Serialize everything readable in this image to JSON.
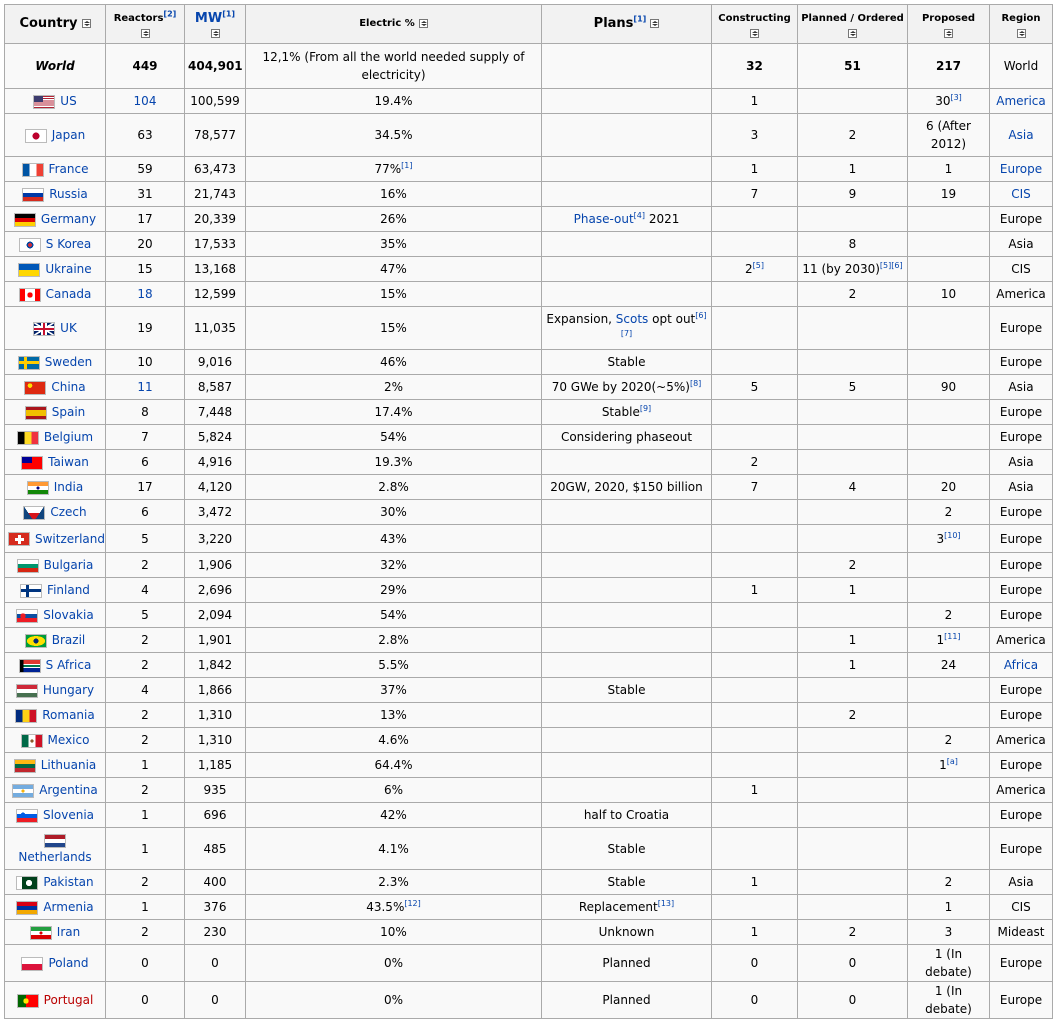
{
  "headers": {
    "country": "Country",
    "reactors": "Reactors",
    "reactors_ref": "[2]",
    "mw": "MW",
    "mw_ref": "[1]",
    "electric": "Electric %",
    "plans": "Plans",
    "plans_ref": "[1]",
    "constructing": "Constructing",
    "planned": "Planned / Ordered",
    "proposed": "Proposed",
    "region": "Region"
  },
  "world": {
    "country": "World",
    "reactors": "449",
    "mw": "404,901",
    "electric": "12,1% (From all the world needed supply of electricity)",
    "plans": "",
    "constructing": "32",
    "planned": "51",
    "proposed": "217",
    "region": "World"
  },
  "rows": [
    {
      "country": "US",
      "flag": "us",
      "reactors": "104",
      "reactors_link": true,
      "mw": "100,599",
      "electric": "19.4%",
      "plans": "",
      "constructing": "1",
      "planned": "",
      "proposed": "30",
      "proposed_ref": "[3]",
      "region": "America",
      "region_link": true
    },
    {
      "country": "Japan",
      "flag": "jp",
      "reactors": "63",
      "mw": "78,577",
      "electric": "34.5%",
      "plans": "",
      "constructing": "3",
      "planned": "2",
      "proposed": "6 (After 2012)",
      "region": "Asia",
      "region_link": true
    },
    {
      "country": "France",
      "flag": "fr",
      "reactors": "59",
      "mw": "63,473",
      "electric": "77%",
      "electric_ref": "[1]",
      "plans": "",
      "constructing": "1",
      "planned": "1",
      "proposed": "1",
      "region": "Europe",
      "region_link": true
    },
    {
      "country": "Russia",
      "flag": "ru",
      "reactors": "31",
      "mw": "21,743",
      "electric": "16%",
      "plans": "",
      "constructing": "7",
      "planned": "9",
      "proposed": "19",
      "region": "CIS",
      "region_link": true
    },
    {
      "country": "Germany",
      "flag": "de",
      "reactors": "17",
      "mw": "20,339",
      "electric": "26%",
      "plans_link": "Phase-out",
      "plans_ref": "[4]",
      "plans": " 2021",
      "constructing": "",
      "planned": "",
      "proposed": "",
      "region": "Europe"
    },
    {
      "country": "S Korea",
      "flag": "kr",
      "reactors": "20",
      "mw": "17,533",
      "electric": "35%",
      "plans": "",
      "constructing": "",
      "planned": "8",
      "proposed": "",
      "region": "Asia"
    },
    {
      "country": "Ukraine",
      "flag": "ua",
      "reactors": "15",
      "mw": "13,168",
      "electric": "47%",
      "plans": "",
      "constructing": "2",
      "constructing_ref": "[5]",
      "planned": "11 (by 2030)",
      "planned_ref": "[5][6]",
      "proposed": "",
      "region": "CIS"
    },
    {
      "country": "Canada",
      "flag": "ca",
      "reactors": "18",
      "reactors_link": true,
      "mw": "12,599",
      "electric": "15%",
      "plans": "",
      "constructing": "",
      "planned": "2",
      "proposed": "10",
      "region": "America"
    },
    {
      "country": "UK",
      "flag": "uk",
      "reactors": "19",
      "mw": "11,035",
      "electric": "15%",
      "plans": "Expansion, ",
      "plans_link2": "Scots",
      "plans_after": " opt out",
      "plans_ref": "[6][7]",
      "constructing": "",
      "planned": "",
      "proposed": "",
      "region": "Europe"
    },
    {
      "country": "Sweden",
      "flag": "se",
      "reactors": "10",
      "mw": "9,016",
      "electric": "46%",
      "plans": "Stable",
      "constructing": "",
      "planned": "",
      "proposed": "",
      "region": "Europe"
    },
    {
      "country": "China",
      "flag": "cn",
      "reactors": "11",
      "reactors_link": true,
      "mw": "8,587",
      "electric": "2%",
      "plans": "70 GWe by 2020(~5%)",
      "plans_ref": "[8]",
      "constructing": "5",
      "planned": "5",
      "proposed": "90",
      "region": "Asia"
    },
    {
      "country": "Spain",
      "flag": "es",
      "reactors": "8",
      "mw": "7,448",
      "electric": "17.4%",
      "plans": "Stable",
      "plans_ref": "[9]",
      "constructing": "",
      "planned": "",
      "proposed": "",
      "region": "Europe"
    },
    {
      "country": "Belgium",
      "flag": "be",
      "reactors": "7",
      "mw": "5,824",
      "electric": "54%",
      "plans": "Considering phaseout",
      "constructing": "",
      "planned": "",
      "proposed": "",
      "region": "Europe"
    },
    {
      "country": "Taiwan",
      "flag": "tw",
      "reactors": "6",
      "mw": "4,916",
      "electric": "19.3%",
      "plans": "",
      "constructing": "2",
      "planned": "",
      "proposed": "",
      "region": "Asia"
    },
    {
      "country": "India",
      "flag": "in",
      "reactors": "17",
      "mw": "4,120",
      "electric": "2.8%",
      "plans": "20GW, 2020, $150 billion",
      "constructing": "7",
      "planned": "4",
      "proposed": "20",
      "region": "Asia"
    },
    {
      "country": "Czech",
      "flag": "cz",
      "reactors": "6",
      "mw": "3,472",
      "electric": "30%",
      "plans": "",
      "constructing": "",
      "planned": "",
      "proposed": "2",
      "region": "Europe"
    },
    {
      "country": "Switzerland",
      "flag": "ch",
      "reactors": "5",
      "mw": "3,220",
      "electric": "43%",
      "plans": "",
      "constructing": "",
      "planned": "",
      "proposed": "3",
      "proposed_ref": "[10]",
      "region": "Europe"
    },
    {
      "country": "Bulgaria",
      "flag": "bg",
      "reactors": "2",
      "mw": "1,906",
      "electric": "32%",
      "plans": "",
      "constructing": "",
      "planned": "2",
      "proposed": "",
      "region": "Europe"
    },
    {
      "country": "Finland",
      "flag": "fi",
      "reactors": "4",
      "mw": "2,696",
      "electric": "29%",
      "plans": "",
      "constructing": "1",
      "planned": "1",
      "proposed": "",
      "region": "Europe"
    },
    {
      "country": "Slovakia",
      "flag": "sk",
      "reactors": "5",
      "mw": "2,094",
      "electric": "54%",
      "plans": "",
      "constructing": "",
      "planned": "",
      "proposed": "2",
      "region": "Europe"
    },
    {
      "country": "Brazil",
      "flag": "br",
      "reactors": "2",
      "mw": "1,901",
      "electric": "2.8%",
      "plans": "",
      "constructing": "",
      "planned": "1",
      "proposed": "1",
      "proposed_ref": "[11]",
      "region": "America"
    },
    {
      "country": "S Africa",
      "flag": "za",
      "reactors": "2",
      "mw": "1,842",
      "electric": "5.5%",
      "plans": "",
      "constructing": "",
      "planned": "1",
      "proposed": "24",
      "region": "Africa",
      "region_link": true
    },
    {
      "country": "Hungary",
      "flag": "hu",
      "reactors": "4",
      "mw": "1,866",
      "electric": "37%",
      "plans": "Stable",
      "constructing": "",
      "planned": "",
      "proposed": "",
      "region": "Europe"
    },
    {
      "country": "Romania",
      "flag": "ro",
      "reactors": "2",
      "mw": "1,310",
      "electric": "13%",
      "plans": "",
      "constructing": "",
      "planned": "2",
      "proposed": "",
      "region": "Europe"
    },
    {
      "country": "Mexico",
      "flag": "mx",
      "reactors": "2",
      "mw": "1,310",
      "electric": "4.6%",
      "plans": "",
      "constructing": "",
      "planned": "",
      "proposed": "2",
      "region": "America"
    },
    {
      "country": "Lithuania",
      "flag": "lt",
      "reactors": "1",
      "mw": "1,185",
      "electric": "64.4%",
      "plans": "",
      "constructing": "",
      "planned": "",
      "proposed": "1",
      "proposed_ref": "[a]",
      "region": "Europe"
    },
    {
      "country": "Argentina",
      "flag": "ar",
      "reactors": "2",
      "mw": "935",
      "electric": "6%",
      "plans": "",
      "constructing": "1",
      "planned": "",
      "proposed": "",
      "region": "America"
    },
    {
      "country": "Slovenia",
      "flag": "si",
      "reactors": "1",
      "mw": "696",
      "electric": "42%",
      "plans": "half to Croatia",
      "constructing": "",
      "planned": "",
      "proposed": "",
      "region": "Europe"
    },
    {
      "country": "Netherlands",
      "flag": "nl",
      "flag_block": true,
      "reactors": "1",
      "mw": "485",
      "electric": "4.1%",
      "plans": "Stable",
      "constructing": "",
      "planned": "",
      "proposed": "",
      "region": "Europe"
    },
    {
      "country": "Pakistan",
      "flag": "pk",
      "reactors": "2",
      "mw": "400",
      "electric": "2.3%",
      "plans": "Stable",
      "constructing": "1",
      "planned": "",
      "proposed": "2",
      "region": "Asia"
    },
    {
      "country": "Armenia",
      "flag": "am",
      "reactors": "1",
      "mw": "376",
      "electric": "43.5%",
      "electric_ref": "[12]",
      "plans": "Replacement",
      "plans_ref": "[13]",
      "constructing": "",
      "planned": "",
      "proposed": "1",
      "region": "CIS"
    },
    {
      "country": "Iran",
      "flag": "ir",
      "reactors": "2",
      "mw": "230",
      "electric": "10%",
      "plans": "Unknown",
      "constructing": "1",
      "planned": "2",
      "proposed": "3",
      "region": "Mideast"
    },
    {
      "country": "Poland",
      "flag": "pl",
      "reactors": "0",
      "mw": "0",
      "electric": "0%",
      "plans": "Planned",
      "constructing": "0",
      "planned": "0",
      "proposed": "1 (In debate)",
      "region": "Europe"
    },
    {
      "country": "Portugal",
      "flag": "pt",
      "country_red": true,
      "reactors": "0",
      "mw": "0",
      "electric": "0%",
      "plans": "Planned",
      "constructing": "0",
      "planned": "0",
      "proposed": "1 (In debate)",
      "region": "Europe"
    }
  ],
  "flags": {
    "us": "linear-gradient(#3c3b6e,#3c3b6e) 0 0/45% 54% no-repeat, repeating-linear-gradient(#b22234 0 1.08px,#ffffff 1.08px 2.16px)",
    "jp": "radial-gradient(circle, #bc002d 0 3.4px, #ffffff 3.6px)",
    "fr": "linear-gradient(90deg,#0055a4 0 33.3%,#ffffff 33.3% 66.6%,#ef4135 66.6%)",
    "ru": "linear-gradient(#ffffff 0 33.3%,#0039a6 33.3% 66.6%,#d52b1e 66.6%)",
    "de": "linear-gradient(#000000 0 33.3%,#dd0000 33.3% 66.6%,#ffce00 66.6%)",
    "kr": "radial-gradient(circle, #cd2e3a 0 2px, #0047a0 2px 3.3px, #ffffff 3.5px)",
    "ua": "linear-gradient(#0057b7 0 50%,#ffd700 50%)",
    "ca": "radial-gradient(circle, #ff0000 0 2.6px, transparent 2.8px), linear-gradient(90deg,#ff0000 0 26%,#ffffff 26% 74%,#ff0000 74%)",
    "uk": "linear-gradient(#c8102e,#c8102e) center/100% 2px no-repeat, linear-gradient(#c8102e,#c8102e) center/2px 100% no-repeat, linear-gradient(#ffffff,#ffffff) center/100% 5px no-repeat, linear-gradient(#ffffff,#ffffff) center/6px 100% no-repeat, linear-gradient(33deg, transparent 46%, #ffffff 46% 54%, transparent 54%), linear-gradient(-33deg, transparent 46%, #ffffff 46% 54%, transparent 54%), #012169",
    "se": "linear-gradient(#fecc00,#fecc00) 0 50%/100% 3px no-repeat, linear-gradient(#fecc00,#fecc00) 30% 0/3px 100% no-repeat, #006aa7",
    "cn": "radial-gradient(circle at 25% 30%, #ffde00 0 2.2px, transparent 2.4px), #de2910",
    "es": "linear-gradient(#aa151b 0 25%,#f1bf00 25% 75%,#aa151b 75%)",
    "be": "linear-gradient(90deg,#000000 0 33.3%,#fdda24 33.3% 66.6%,#ef3340 66.6%)",
    "tw": "linear-gradient(#000095,#000095) 0 0/50% 50% no-repeat, #fe0000",
    "in": "radial-gradient(circle, #000080 0 1.4px, transparent 1.6px), linear-gradient(#ff9933 0 33.3%,#ffffff 33.3% 66.6%,#138808 66.6%)",
    "cz": "linear-gradient(56deg,#11457e 0 30%,transparent 30%), linear-gradient(-56deg,#11457e 0 30%,transparent 30%), linear-gradient(#ffffff 0 50%,#d7141a 50%)",
    "ch": "linear-gradient(#ffffff,#ffffff) center/9px 3px no-repeat, linear-gradient(#ffffff,#ffffff) center/3px 9px no-repeat, #d52b1e",
    "bg": "linear-gradient(#ffffff 0 33.3%,#00966e 33.3% 66.6%,#d62612 66.6%)",
    "fi": "linear-gradient(#003580,#003580) 0 50%/100% 3px no-repeat, linear-gradient(#003580,#003580) 30% 0/3px 100% no-repeat, #ffffff",
    "sk": "radial-gradient(circle at 30% 50%, #ee1c25 0 2.6px, transparent 2.8px), linear-gradient(#ffffff 0 33.3%,#0b4ea2 33.3% 66.6%,#ee1c25 66.6%)",
    "br": "radial-gradient(circle, #002776 0 2.4px, transparent 2.6px), radial-gradient(ellipse 50% 45% at 50% 50%, #fedf00 0 90%, transparent 92%), #009c3b",
    "za": "linear-gradient(90deg,#000000 0 18%,transparent 18%), linear-gradient(#de3831 0 33%,#ffffff 33% 40%,#007a4d 40% 60%,#ffffff 60% 67%,#002395 67%)",
    "hu": "linear-gradient(#ce2939 0 33.3%,#ffffff 33.3% 66.6%,#477050 66.6%)",
    "ro": "linear-gradient(90deg,#002b7f 0 33.3%,#fcd116 33.3% 66.6%,#ce1126 66.6%)",
    "mx": "radial-gradient(circle, #8b5a2b 0 1.6px, transparent 1.8px), linear-gradient(90deg,#006847 0 33.3%,#ffffff 33.3% 66.6%,#ce1126 66.6%)",
    "lt": "linear-gradient(#fdb913 0 33.3%,#006a44 33.3% 66.6%,#c1272d 66.6%)",
    "ar": "radial-gradient(circle, #f6b40e 0 1.5px, transparent 1.7px), linear-gradient(#74acdf 0 33.3%,#ffffff 33.3% 66.6%,#74acdf 66.6%)",
    "si": "radial-gradient(circle at 30% 40%, #005ce5 0 2.2px, transparent 2.4px), linear-gradient(#ffffff 0 33.3%,#005ce5 33.3% 66.6%,#ed1c24 66.6%)",
    "nl": "linear-gradient(#ae1c28 0 33.3%,#ffffff 33.3% 66.6%,#21468b 66.6%)",
    "pk": "radial-gradient(circle at 60% 50%, #ffffff 0 3px, transparent 3.2px), linear-gradient(90deg,#ffffff 0 25%,#01411c 25%)",
    "am": "linear-gradient(#d90012 0 33.3%,#0033a0 33.3% 66.6%,#f2a800 66.6%)",
    "ir": "radial-gradient(circle, #da0000 0 1.4px, transparent 1.6px), linear-gradient(#239f40 0 33.3%,#ffffff 33.3% 66.6%,#da0000 66.6%)",
    "pl": "linear-gradient(#ffffff 0 50%,#dc143c 50%)",
    "pt": "radial-gradient(circle at 40% 50%, #ffe900 0 2.6px, transparent 2.8px), linear-gradient(90deg,#006600 0 40%,#ff0000 40%)"
  }
}
